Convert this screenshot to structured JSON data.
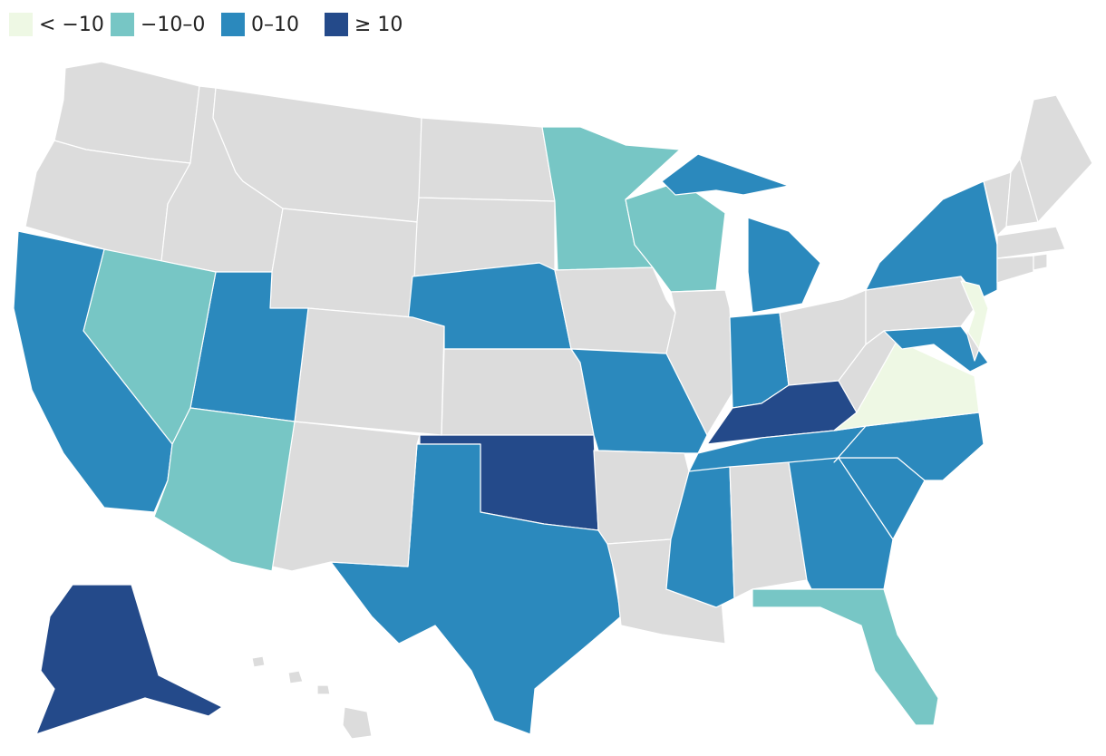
{
  "legend": [
    {
      "label": "< −10",
      "color": "#eef8e4"
    },
    {
      "label": "−10–0",
      "color": "#77c6c5"
    },
    {
      "label": "0–10",
      "color": "#2b89bd"
    },
    {
      "label": "≥ 10",
      "color": "#244a8a"
    }
  ],
  "no_data_color": "#dcdcdc",
  "state_bins": [
    null,
    null,
    null,
    null,
    null,
    null,
    null,
    2,
    null,
    3,
    2,
    null,
    null,
    2,
    1,
    2,
    1,
    1,
    null,
    1,
    null,
    2,
    2,
    null,
    3,
    2,
    2,
    null,
    null,
    2,
    null,
    2,
    1,
    2,
    2,
    0,
    null,
    null,
    2,
    0,
    2,
    null,
    null,
    null,
    null,
    null,
    null,
    null,
    3,
    null
  ]
}
